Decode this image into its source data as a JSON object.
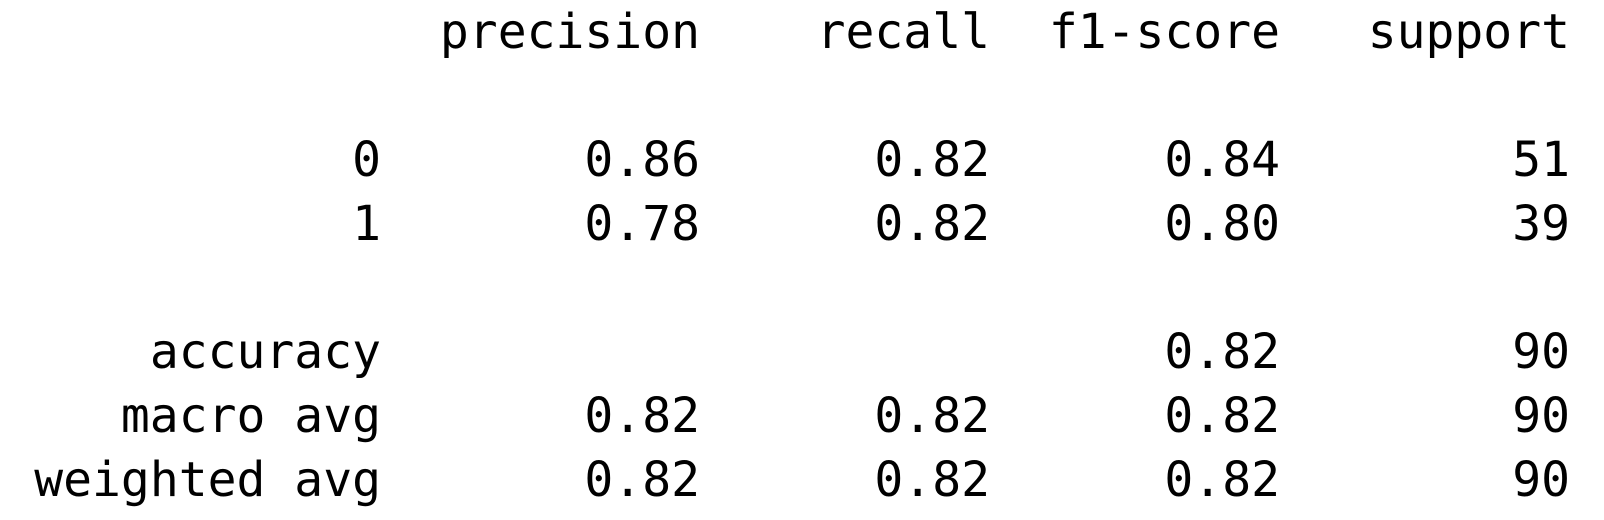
{
  "header": {
    "precision": "precision",
    "recall": "recall",
    "f1_score": "f1-score",
    "support": "support"
  },
  "rows": [
    {
      "label": "0",
      "precision": "0.86",
      "recall": "0.82",
      "f1_score": "0.84",
      "support": "51"
    },
    {
      "label": "1",
      "precision": "0.78",
      "recall": "0.82",
      "f1_score": "0.80",
      "support": "39"
    }
  ],
  "accuracy": {
    "label": "accuracy",
    "f1_score": "0.82",
    "support": "90"
  },
  "macro_avg": {
    "label": "macro avg",
    "precision": "0.82",
    "recall": "0.82",
    "f1_score": "0.82",
    "support": "90"
  },
  "weighted_avg": {
    "label": "weighted avg",
    "precision": "0.82",
    "recall": "0.82",
    "f1_score": "0.82",
    "support": "90"
  }
}
